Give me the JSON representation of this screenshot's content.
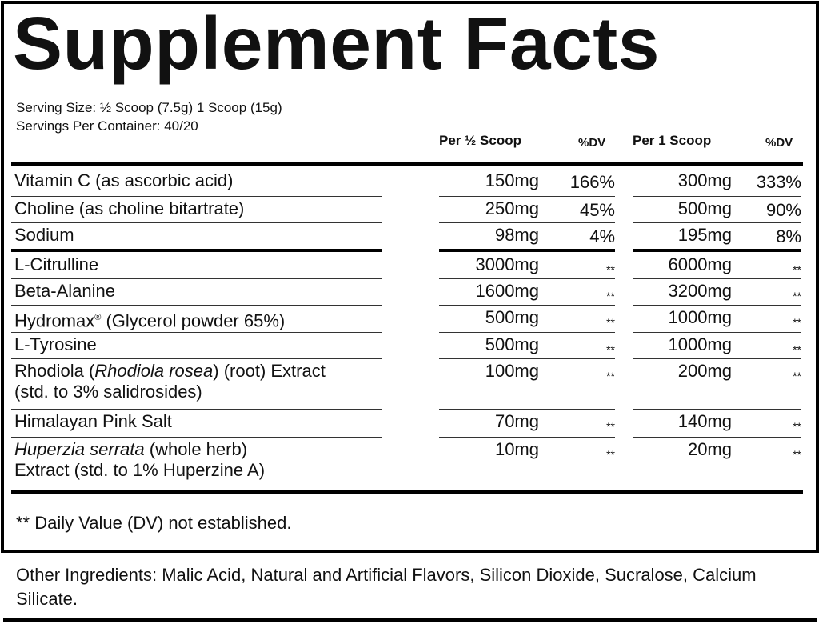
{
  "title": "Supplement Facts",
  "serving_size": "Serving Size: ½ Scoop (7.5g) 1 Scoop (15g)",
  "servings_per_container": "Servings Per Container: 40/20",
  "headers": {
    "per_half": "Per ½ Scoop",
    "dv1": "%DV",
    "per_one": "Per 1 Scoop",
    "dv2": "%DV"
  },
  "rows": [
    {
      "name": [
        {
          "t": "Vitamin C (as ascorbic acid)"
        }
      ],
      "half": "150mg",
      "half_dv": "166%",
      "one": "300mg",
      "one_dv": "333%"
    },
    {
      "name": [
        {
          "t": "Choline (as choline bitartrate)"
        }
      ],
      "half": "250mg",
      "half_dv": "45%",
      "one": "500mg",
      "one_dv": "90%"
    },
    {
      "name": [
        {
          "t": "Sodium"
        }
      ],
      "half": "98mg",
      "half_dv": "4%",
      "one": "195mg",
      "one_dv": "8%"
    },
    {
      "name": [
        {
          "t": "L-Citrulline"
        }
      ],
      "half": "3000mg",
      "half_dv": "**",
      "one": "6000mg",
      "one_dv": "**"
    },
    {
      "name": [
        {
          "t": "Beta-Alanine"
        }
      ],
      "half": "1600mg",
      "half_dv": "**",
      "one": "3200mg",
      "one_dv": "**"
    },
    {
      "name": [
        {
          "t": "Hydromax"
        },
        {
          "t": "®",
          "sup": true
        },
        {
          "t": " (Glycerol powder 65%)"
        }
      ],
      "half": "500mg",
      "half_dv": "**",
      "one": "1000mg",
      "one_dv": "**"
    },
    {
      "name": [
        {
          "t": "L-Tyrosine"
        }
      ],
      "half": "500mg",
      "half_dv": "**",
      "one": "1000mg",
      "one_dv": "**"
    },
    {
      "name": [
        {
          "t": "Rhodiola ("
        },
        {
          "t": "Rhodiola rosea",
          "i": true
        },
        {
          "t": ") (root) Extract"
        },
        {
          "br": true
        },
        {
          "t": "(std. to 3% salidrosides)"
        }
      ],
      "half": "100mg",
      "half_dv": "**",
      "one": "200mg",
      "one_dv": "**"
    },
    {
      "name": [
        {
          "t": "Himalayan Pink Salt"
        }
      ],
      "half": "70mg",
      "half_dv": "**",
      "one": "140mg",
      "one_dv": "**"
    },
    {
      "name": [
        {
          "t": "Huperzia serrata",
          "i": true
        },
        {
          "t": " (whole herb)"
        },
        {
          "br": true
        },
        {
          "t": "Extract (std. to 1% Huperzine A)"
        }
      ],
      "half": "10mg",
      "half_dv": "**",
      "one": "20mg",
      "one_dv": "**"
    }
  ],
  "footnote": "** Daily Value (DV) not established.",
  "other_ingredients": "Other Ingredients: Malic Acid, Natural and Artificial Flavors, Silicon Dioxide, Sucralose, Calcium Silicate."
}
